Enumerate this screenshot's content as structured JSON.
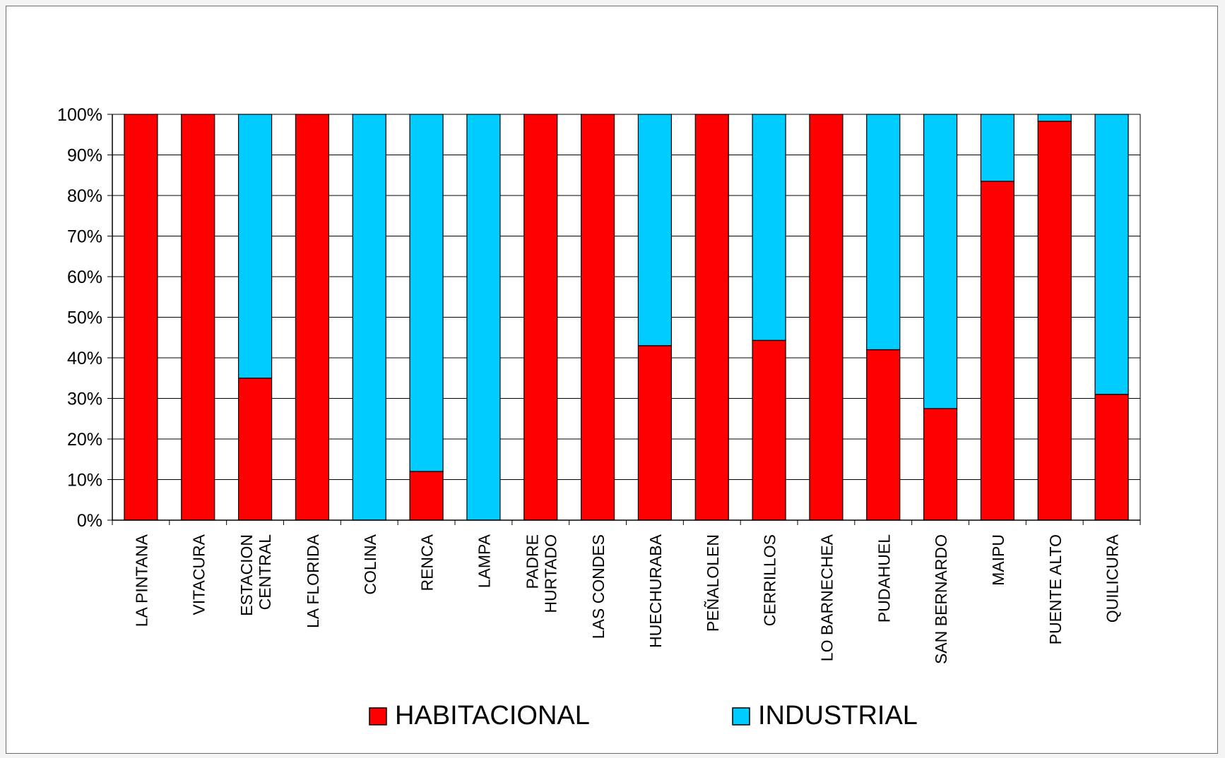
{
  "chart_data": {
    "type": "bar",
    "stacked": "percent",
    "categories": [
      [
        "LA PINTANA"
      ],
      [
        "VITACURA"
      ],
      [
        "ESTACION",
        "CENTRAL"
      ],
      [
        "LA FLORIDA"
      ],
      [
        "COLINA"
      ],
      [
        "RENCA"
      ],
      [
        "LAMPA"
      ],
      [
        "PADRE",
        "HURTADO"
      ],
      [
        "LAS CONDES"
      ],
      [
        "HUECHURABA"
      ],
      [
        "PEÑALOLEN"
      ],
      [
        "CERRILLOS"
      ],
      [
        "LO BARNECHEA"
      ],
      [
        "PUDAHUEL"
      ],
      [
        "SAN BERNARDO"
      ],
      [
        "MAIPU"
      ],
      [
        "PUENTE ALTO"
      ],
      [
        "QUILICURA"
      ]
    ],
    "series": [
      {
        "name": "HABITACIONAL",
        "color": "#ff0000",
        "values": [
          100,
          100,
          35,
          100,
          0,
          12,
          0,
          100,
          100,
          43,
          100,
          44.3,
          100,
          42,
          27.5,
          83.5,
          98.3,
          31
        ]
      },
      {
        "name": "INDUSTRIAL",
        "color": "#00ccff",
        "values": [
          0,
          0,
          65,
          0,
          100,
          88,
          100,
          0,
          0,
          57,
          0,
          55.7,
          0,
          58,
          72.5,
          16.5,
          1.7,
          69
        ]
      }
    ],
    "yticks": [
      "0%",
      "10%",
      "20%",
      "30%",
      "40%",
      "50%",
      "60%",
      "70%",
      "80%",
      "90%",
      "100%"
    ],
    "ylim": [
      0,
      100
    ],
    "grid": true,
    "legend_position": "bottom"
  }
}
